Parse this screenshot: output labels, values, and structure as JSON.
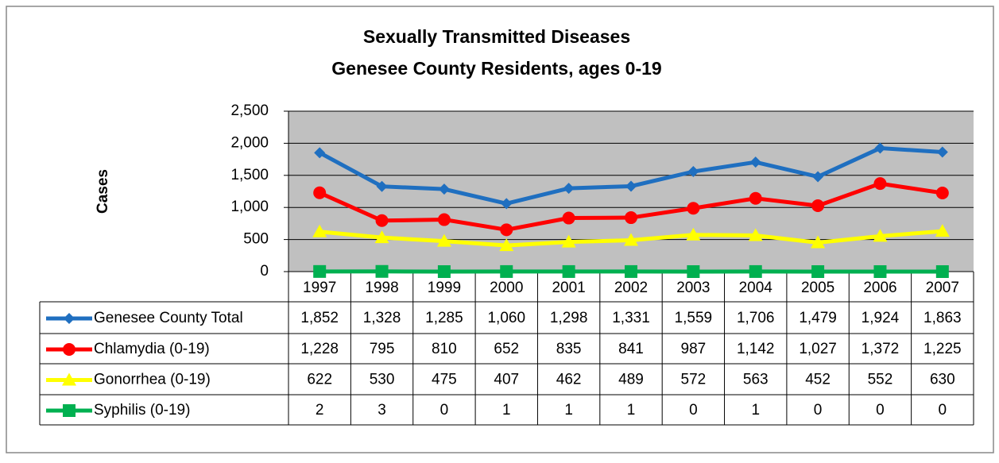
{
  "chart_data": {
    "type": "line",
    "title": "Sexually Transmitted Diseases",
    "subtitle": "Genesee County Residents, ages 0-19",
    "y_label": "Cases",
    "categories": [
      "1997",
      "1998",
      "1999",
      "2000",
      "2001",
      "2002",
      "2003",
      "2004",
      "2005",
      "2006",
      "2007"
    ],
    "series": [
      {
        "name": "Genesee County Total",
        "color": "#1f6fc0",
        "marker": "diamond",
        "values": [
          1852,
          1328,
          1285,
          1060,
          1298,
          1331,
          1559,
          1706,
          1479,
          1924,
          1863
        ],
        "value_labels": [
          "1,852",
          "1,328",
          "1,285",
          "1,060",
          "1,298",
          "1,331",
          "1,559",
          "1,706",
          "1,479",
          "1,924",
          "1,863"
        ]
      },
      {
        "name": "Chlamydia (0-19)",
        "color": "#ff0000",
        "marker": "circle",
        "values": [
          1228,
          795,
          810,
          652,
          835,
          841,
          987,
          1142,
          1027,
          1372,
          1225
        ],
        "value_labels": [
          "1,228",
          "795",
          "810",
          "652",
          "835",
          "841",
          "987",
          "1,142",
          "1,027",
          "1,372",
          "1,225"
        ]
      },
      {
        "name": "Gonorrhea (0-19)",
        "color": "#ffff00",
        "marker": "triangle",
        "values": [
          622,
          530,
          475,
          407,
          462,
          489,
          572,
          563,
          452,
          552,
          630
        ]
      },
      {
        "name": "Syphilis (0-19)",
        "color": "#00b050",
        "marker": "square",
        "values": [
          2,
          3,
          0,
          1,
          1,
          1,
          0,
          1,
          0,
          0,
          0
        ]
      }
    ],
    "ylim": [
      0,
      2500
    ],
    "yticks": [
      0,
      500,
      {
        "value": 1000,
        "label": "1,000"
      },
      {
        "value": 1500,
        "label": "1,500"
      },
      {
        "value": 2000,
        "label": "2,000"
      },
      {
        "value": 2500,
        "label": "2,500"
      }
    ],
    "grid": true,
    "plot_background": "#c0c0c0"
  }
}
